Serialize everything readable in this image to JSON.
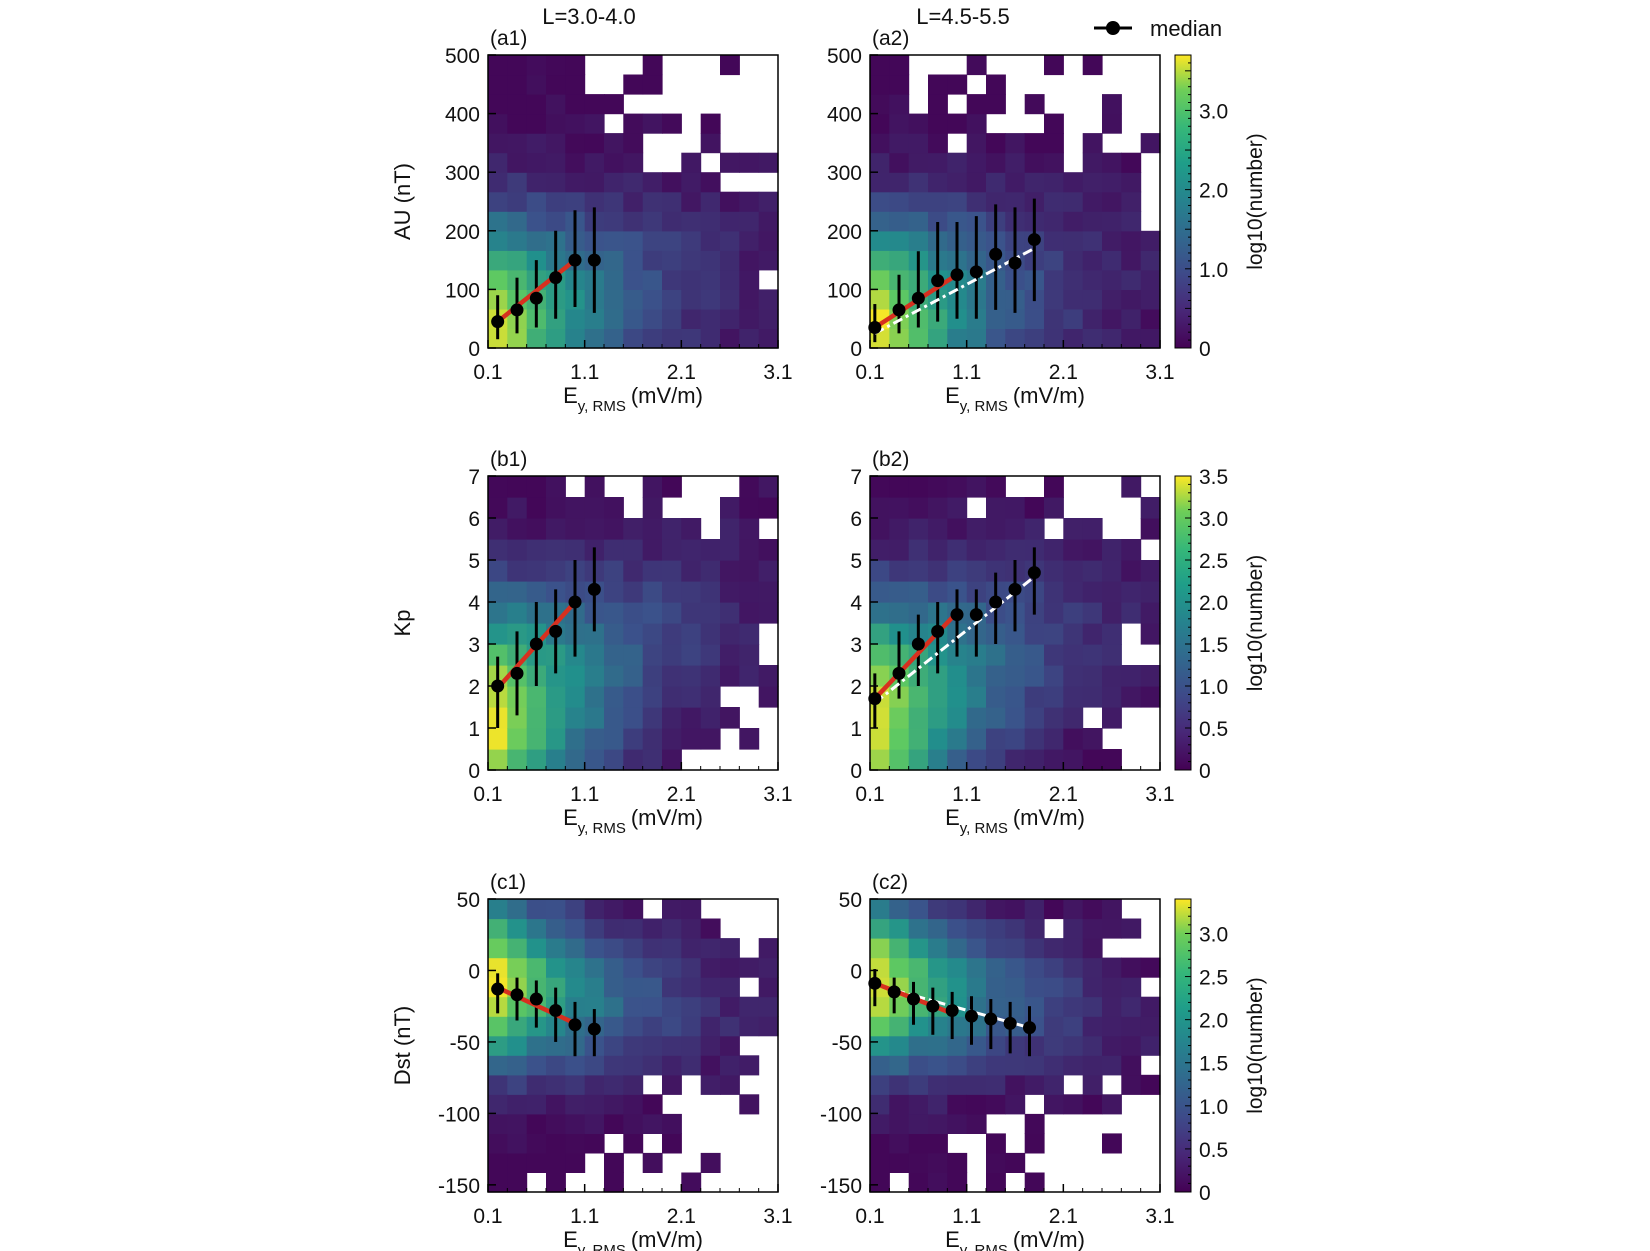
{
  "header": {
    "col1_title": "L=3.0-4.0",
    "col2_title": "L=4.5-5.5",
    "legend_label": "median"
  },
  "colors": {
    "fit_line": "#d7301f",
    "median_marker": "#000000",
    "extension_line": "#ffffff",
    "colormap": [
      "#440154",
      "#3b528b",
      "#21918c",
      "#5ec962",
      "#fde725"
    ]
  },
  "chart_data": [
    {
      "panel": "(a1)",
      "type": "heatmap",
      "column_title": "L=3.0-4.0",
      "xlabel_main": "E",
      "xlabel_sub": "y, RMS",
      "xlabel_unit": "(mV/m)",
      "ylabel": "AU (nT)",
      "xlim": [
        0.1,
        3.1
      ],
      "ylim": [
        0,
        500
      ],
      "xticks": [
        "0.1",
        "1.1",
        "2.1",
        "3.1"
      ],
      "yticks": [
        "0",
        "100",
        "200",
        "300",
        "400",
        "500"
      ],
      "colorbar_label": "log10(number)",
      "colorbar_range": [
        0,
        3.7
      ],
      "colorbar_ticks": [
        "0",
        "1.0",
        "2.0",
        "3.0"
      ],
      "median_points": [
        {
          "x": 0.2,
          "y": 45,
          "lo": 15,
          "hi": 90
        },
        {
          "x": 0.4,
          "y": 65,
          "lo": 25,
          "hi": 120
        },
        {
          "x": 0.6,
          "y": 85,
          "lo": 35,
          "hi": 150
        },
        {
          "x": 0.8,
          "y": 120,
          "lo": 50,
          "hi": 200
        },
        {
          "x": 1.0,
          "y": 150,
          "lo": 70,
          "hi": 235
        },
        {
          "x": 1.2,
          "y": 150,
          "lo": 60,
          "hi": 240
        }
      ],
      "fit_line": {
        "x": [
          0.2,
          1.0
        ],
        "y": [
          45,
          150
        ]
      },
      "extension_line": null
    },
    {
      "panel": "(a2)",
      "type": "heatmap",
      "column_title": "L=4.5-5.5",
      "xlabel_main": "E",
      "xlabel_sub": "y, RMS",
      "xlabel_unit": "(mV/m)",
      "ylabel": "",
      "xlim": [
        0.1,
        3.1
      ],
      "ylim": [
        0,
        500
      ],
      "xticks": [
        "0.1",
        "1.1",
        "2.1",
        "3.1"
      ],
      "yticks": [
        "0",
        "100",
        "200",
        "300",
        "400",
        "500"
      ],
      "colorbar_label": "log10(number)",
      "colorbar_range": [
        0,
        3.7
      ],
      "colorbar_ticks": [
        "0",
        "1.0",
        "2.0",
        "3.0"
      ],
      "median_points": [
        {
          "x": 0.15,
          "y": 35,
          "lo": 10,
          "hi": 75
        },
        {
          "x": 0.4,
          "y": 65,
          "lo": 25,
          "hi": 125
        },
        {
          "x": 0.6,
          "y": 85,
          "lo": 35,
          "hi": 165
        },
        {
          "x": 0.8,
          "y": 115,
          "lo": 45,
          "hi": 215
        },
        {
          "x": 1.0,
          "y": 125,
          "lo": 50,
          "hi": 215
        },
        {
          "x": 1.2,
          "y": 130,
          "lo": 50,
          "hi": 225
        },
        {
          "x": 1.4,
          "y": 160,
          "lo": 65,
          "hi": 245
        },
        {
          "x": 1.6,
          "y": 145,
          "lo": 60,
          "hi": 240
        },
        {
          "x": 1.8,
          "y": 185,
          "lo": 80,
          "hi": 255
        }
      ],
      "fit_line": {
        "x": [
          0.15,
          1.0
        ],
        "y": [
          35,
          125
        ]
      },
      "extension_line": {
        "x": [
          0.15,
          1.8
        ],
        "y": [
          25,
          170
        ]
      }
    },
    {
      "panel": "(b1)",
      "type": "heatmap",
      "column_title": "L=3.0-4.0",
      "xlabel_main": "E",
      "xlabel_sub": "y, RMS",
      "xlabel_unit": "(mV/m)",
      "ylabel": "Kp",
      "xlim": [
        0.1,
        3.1
      ],
      "ylim": [
        0,
        7
      ],
      "xticks": [
        "0.1",
        "1.1",
        "2.1",
        "3.1"
      ],
      "yticks": [
        "0",
        "1",
        "2",
        "3",
        "4",
        "5",
        "6",
        "7"
      ],
      "colorbar_label": "log10(number)",
      "colorbar_range": [
        0,
        3.5
      ],
      "colorbar_ticks": [
        "0",
        "0.5",
        "1.0",
        "1.5",
        "2.0",
        "2.5",
        "3.0",
        "3.5"
      ],
      "median_points": [
        {
          "x": 0.2,
          "y": 2.0,
          "lo": 1.0,
          "hi": 2.7
        },
        {
          "x": 0.4,
          "y": 2.3,
          "lo": 1.3,
          "hi": 3.3
        },
        {
          "x": 0.6,
          "y": 3.0,
          "lo": 2.0,
          "hi": 4.0
        },
        {
          "x": 0.8,
          "y": 3.3,
          "lo": 2.3,
          "hi": 4.3
        },
        {
          "x": 1.0,
          "y": 4.0,
          "lo": 2.7,
          "hi": 5.0
        },
        {
          "x": 1.2,
          "y": 4.3,
          "lo": 3.3,
          "hi": 5.3
        }
      ],
      "fit_line": {
        "x": [
          0.2,
          1.0
        ],
        "y": [
          1.95,
          4.0
        ]
      },
      "extension_line": null
    },
    {
      "panel": "(b2)",
      "type": "heatmap",
      "column_title": "L=4.5-5.5",
      "xlabel_main": "E",
      "xlabel_sub": "y, RMS",
      "xlabel_unit": "(mV/m)",
      "ylabel": "",
      "xlim": [
        0.1,
        3.1
      ],
      "ylim": [
        0,
        7
      ],
      "xticks": [
        "0.1",
        "1.1",
        "2.1",
        "3.1"
      ],
      "yticks": [
        "0",
        "1",
        "2",
        "3",
        "4",
        "5",
        "6",
        "7"
      ],
      "colorbar_label": "log10(number)",
      "colorbar_range": [
        0,
        3.5
      ],
      "colorbar_ticks": [
        "0",
        "0.5",
        "1.0",
        "1.5",
        "2.0",
        "2.5",
        "3.0",
        "3.5"
      ],
      "median_points": [
        {
          "x": 0.15,
          "y": 1.7,
          "lo": 1.0,
          "hi": 2.3
        },
        {
          "x": 0.4,
          "y": 2.3,
          "lo": 1.7,
          "hi": 3.3
        },
        {
          "x": 0.6,
          "y": 3.0,
          "lo": 2.0,
          "hi": 3.7
        },
        {
          "x": 0.8,
          "y": 3.3,
          "lo": 2.3,
          "hi": 4.0
        },
        {
          "x": 1.0,
          "y": 3.7,
          "lo": 2.7,
          "hi": 4.3
        },
        {
          "x": 1.2,
          "y": 3.7,
          "lo": 2.7,
          "hi": 4.3
        },
        {
          "x": 1.4,
          "y": 4.0,
          "lo": 3.0,
          "hi": 4.7
        },
        {
          "x": 1.6,
          "y": 4.3,
          "lo": 3.3,
          "hi": 5.0
        },
        {
          "x": 1.8,
          "y": 4.7,
          "lo": 3.7,
          "hi": 5.3
        }
      ],
      "fit_line": {
        "x": [
          0.15,
          1.0
        ],
        "y": [
          1.7,
          3.75
        ]
      },
      "extension_line": {
        "x": [
          0.15,
          1.8
        ],
        "y": [
          1.6,
          4.6
        ]
      }
    },
    {
      "panel": "(c1)",
      "type": "heatmap",
      "column_title": "L=3.0-4.0",
      "xlabel_main": "E",
      "xlabel_sub": "y, RMS",
      "xlabel_unit": "(mV/m)",
      "ylabel": "Dst (nT)",
      "xlim": [
        0.1,
        3.1
      ],
      "ylim": [
        -155,
        50
      ],
      "xticks": [
        "0.1",
        "1.1",
        "2.1",
        "3.1"
      ],
      "yticks": [
        "-150",
        "-100",
        "-50",
        "0",
        "50"
      ],
      "colorbar_label": "log10(number)",
      "colorbar_range": [
        0,
        3.4
      ],
      "colorbar_ticks": [
        "0",
        "0.5",
        "1.0",
        "1.5",
        "2.0",
        "2.5",
        "3.0"
      ],
      "median_points": [
        {
          "x": 0.2,
          "y": -13,
          "lo": -30,
          "hi": -2
        },
        {
          "x": 0.4,
          "y": -17,
          "lo": -35,
          "hi": -5
        },
        {
          "x": 0.6,
          "y": -20,
          "lo": -40,
          "hi": -7
        },
        {
          "x": 0.8,
          "y": -28,
          "lo": -50,
          "hi": -12
        },
        {
          "x": 1.0,
          "y": -38,
          "lo": -60,
          "hi": -22
        },
        {
          "x": 1.2,
          "y": -41,
          "lo": -60,
          "hi": -27
        }
      ],
      "fit_line": {
        "x": [
          0.2,
          1.0
        ],
        "y": [
          -12,
          -37
        ]
      },
      "extension_line": null
    },
    {
      "panel": "(c2)",
      "type": "heatmap",
      "column_title": "L=4.5-5.5",
      "xlabel_main": "E",
      "xlabel_sub": "y, RMS",
      "xlabel_unit": "(mV/m)",
      "ylabel": "",
      "xlim": [
        0.1,
        3.1
      ],
      "ylim": [
        -155,
        50
      ],
      "xticks": [
        "0.1",
        "1.1",
        "2.1",
        "3.1"
      ],
      "yticks": [
        "-150",
        "-100",
        "-50",
        "0",
        "50"
      ],
      "colorbar_label": "log10(number)",
      "colorbar_range": [
        0,
        3.4
      ],
      "colorbar_ticks": [
        "0",
        "0.5",
        "1.0",
        "1.5",
        "2.0",
        "2.5",
        "3.0"
      ],
      "median_points": [
        {
          "x": 0.15,
          "y": -9,
          "lo": -25,
          "hi": 1
        },
        {
          "x": 0.35,
          "y": -15,
          "lo": -30,
          "hi": -5
        },
        {
          "x": 0.55,
          "y": -20,
          "lo": -38,
          "hi": -8
        },
        {
          "x": 0.75,
          "y": -25,
          "lo": -45,
          "hi": -12
        },
        {
          "x": 0.95,
          "y": -28,
          "lo": -48,
          "hi": -15
        },
        {
          "x": 1.15,
          "y": -32,
          "lo": -52,
          "hi": -18
        },
        {
          "x": 1.35,
          "y": -34,
          "lo": -55,
          "hi": -20
        },
        {
          "x": 1.55,
          "y": -37,
          "lo": -58,
          "hi": -22
        },
        {
          "x": 1.75,
          "y": -40,
          "lo": -60,
          "hi": -25
        }
      ],
      "fit_line": {
        "x": [
          0.15,
          0.95
        ],
        "y": [
          -9,
          -30
        ]
      },
      "extension_line": {
        "x": [
          0.15,
          1.75
        ],
        "y": [
          -10,
          -40
        ]
      }
    }
  ]
}
